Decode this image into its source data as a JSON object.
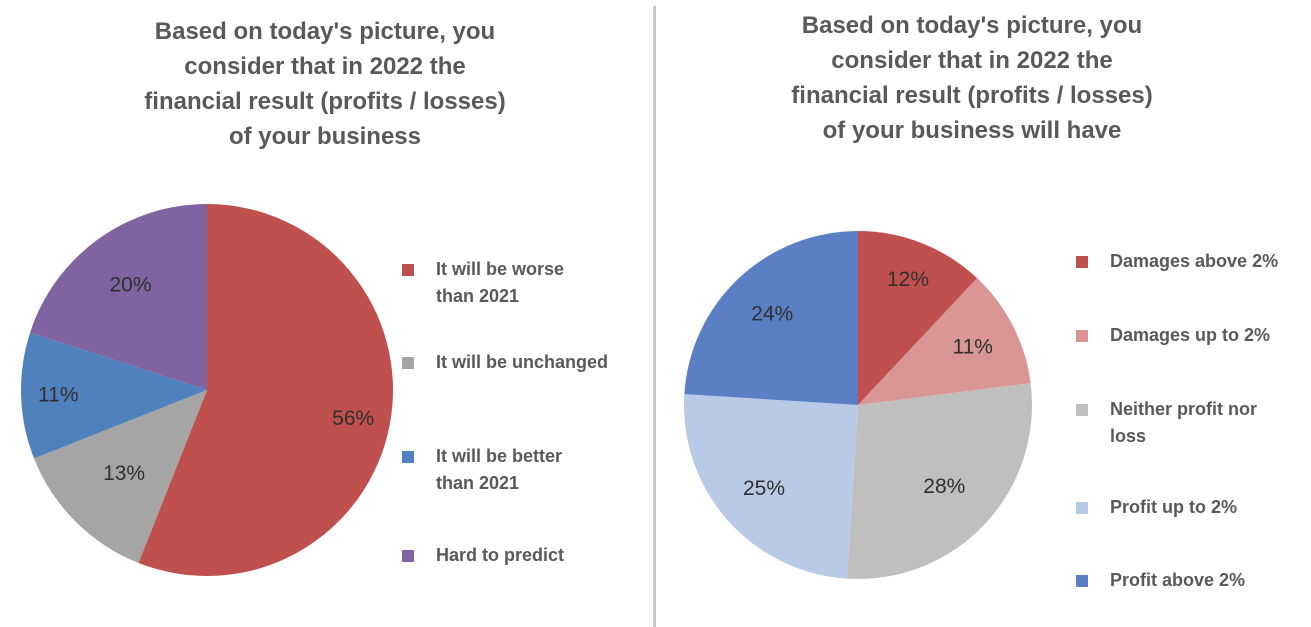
{
  "chart_data": [
    {
      "type": "pie",
      "title_lines": [
        "Based on today's picture, you",
        "consider that in 2022 the",
        "financial result (profits / losses)",
        "of your business"
      ],
      "categories": [
        "It will be worse than 2021",
        "It will be unchanged",
        "It will be better than 2021",
        "Hard to predict"
      ],
      "legend_lines": [
        [
          "It will be worse",
          "than 2021"
        ],
        [
          "It will be unchanged"
        ],
        [
          "It will be better",
          "than 2021"
        ],
        [
          "Hard to predict"
        ]
      ],
      "values": [
        56,
        13,
        11,
        20
      ],
      "value_labels": [
        "56%",
        "13%",
        "11%",
        "20%"
      ],
      "colors": [
        "#c0504d",
        "#a5a5a5",
        "#4f81bd",
        "#8064a2"
      ],
      "legend_position": "right"
    },
    {
      "type": "pie",
      "title_lines": [
        "Based on today's picture, you",
        "consider that in 2022 the",
        "financial result (profits / losses)",
        "of your business will have"
      ],
      "categories": [
        "Damages above 2%",
        "Damages up to 2%",
        "Neither profit nor loss",
        "Profit up to 2%",
        "Profit above 2%"
      ],
      "legend_lines": [
        [
          "Damages above 2%"
        ],
        [
          "Damages up to 2%"
        ],
        [
          "Neither profit nor",
          "loss"
        ],
        [
          "Profit up to 2%"
        ],
        [
          "Profit above 2%"
        ]
      ],
      "values": [
        12,
        11,
        28,
        25,
        24
      ],
      "value_labels": [
        "12%",
        "11%",
        "28%",
        "25%",
        "24%"
      ],
      "colors": [
        "#c0504d",
        "#d99694",
        "#bfbfbf",
        "#b9cae6",
        "#5b7fc4"
      ],
      "legend_position": "right"
    }
  ]
}
